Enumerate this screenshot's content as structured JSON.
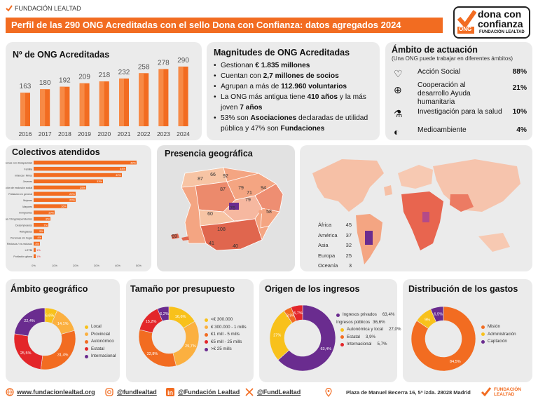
{
  "header": {
    "org_logo_text": "FUNDACIÓN LEALTAD",
    "banner_title": "Perfil de las 290 ONG Acreditadas con el sello Dona con Confianza: datos agregados 2024",
    "seal": {
      "line1": "dona con",
      "line2": "confianza",
      "badge": "ONG",
      "org": "FUNDACIÓN LEALTAD"
    }
  },
  "colors": {
    "orange": "#f26c21",
    "dark_orange": "#c94a0c",
    "purple": "#6a2c8f",
    "yellow": "#f8c11b",
    "red": "#e3262a",
    "card_bg": "#ebebeb"
  },
  "ong_count": {
    "title": "Nº de ONG Acreditadas"
  },
  "magnitudes": {
    "title": "Magnitudes de ONG Acreditadas",
    "items": [
      {
        "pre": "Gestionan ",
        "bold": "€ 1.835 millones",
        "post": ""
      },
      {
        "pre": "Cuentan con ",
        "bold": "2,7 millones de socios",
        "post": ""
      },
      {
        "pre": "Agrupan a más de ",
        "bold": "112.960 voluntarios",
        "post": ""
      },
      {
        "pre": "La ONG más antigua tiene ",
        "bold": "410 años",
        "post": " y la más joven ",
        "bold2": "7 años"
      },
      {
        "pre": "53% son ",
        "bold": "Asociaciones",
        "post": " declaradas de utilidad pública y 47% son ",
        "bold2": "Fundaciones"
      }
    ]
  },
  "ambito_actuacion": {
    "title": "Ámbito de actuación",
    "subtitle": "(Una ONG puede trabajar en diferentes ámbitos)",
    "rows": [
      {
        "icon": "hands-heart-icon",
        "label": "Acción Social",
        "pct": "88%"
      },
      {
        "icon": "globe-parachute-icon",
        "label": "Cooperación al desarrollo Ayuda humanitaria",
        "pct": "21%"
      },
      {
        "icon": "microscope-icon",
        "label": "Investigación para la salud",
        "pct": "10%"
      },
      {
        "icon": "earth-icon",
        "label": "Medioambiente",
        "pct": "4%"
      }
    ]
  },
  "colectivos": {
    "title": "Colectivos atendidos"
  },
  "presencia": {
    "title": "Presencia geográfica"
  },
  "ambito_geo": {
    "title": "Ámbito geográfico"
  },
  "tamano": {
    "title": "Tamaño por presupuesto"
  },
  "origen": {
    "title": "Origen de los ingresos"
  },
  "gastos": {
    "title": "Distribución de los gastos"
  },
  "footer": {
    "web": "www.fundacionlealtad.org",
    "instagram": "@fundlealtad",
    "linkedin": "@Fundación Lealtad",
    "x": "@FundLealtad",
    "address": "Plaza de Manuel Becerra 16, 5ª izda. 28028 Madrid",
    "logo": "FUNDACIÓN LEALTAD"
  },
  "chart_data": [
    {
      "type": "bar",
      "title": "Nº de ONG Acreditadas",
      "categories": [
        "2016",
        "2017",
        "2018",
        "2019",
        "2020",
        "2021",
        "2022",
        "2023",
        "2024"
      ],
      "values": [
        163,
        180,
        192,
        209,
        218,
        232,
        258,
        278,
        290
      ]
    },
    {
      "type": "bar",
      "title": "Colectivos atendidos",
      "orientation": "horizontal",
      "categories": [
        "Personas con discapacidad",
        "Familia",
        "Infancia / Niños",
        "Jóvenes",
        "Personas en situación de exclusión social",
        "Población en general",
        "Mujeres",
        "Mayores",
        "Inmigrantes",
        "Personas enfermas / Drogodependientes",
        "Desempleados",
        "Refugiados",
        "Personas sin hogar",
        "Reclusos / ex-reclusos",
        "LGTBI",
        "Población gitana"
      ],
      "values": [
        49,
        44,
        42,
        33,
        25,
        20,
        20,
        16,
        10,
        8,
        7,
        5,
        4,
        3,
        1,
        1
      ],
      "value_labels": [
        "49%",
        "44%",
        "42%",
        "33%",
        "25%",
        "20%",
        "20%",
        "16%",
        "10%",
        "8%",
        "7%",
        "5%",
        "4%",
        "3%",
        "1%",
        "1%"
      ],
      "x_ticks": [
        "0%",
        "10%",
        "20%",
        "30%",
        "40%",
        "50%"
      ],
      "xlim": [
        0,
        50
      ]
    },
    {
      "type": "table",
      "title": "Presencia geográfica",
      "spain_region_values": [
        "87",
        "66",
        "92",
        "87",
        "79",
        "94",
        "71",
        "79",
        "76",
        "58",
        "60",
        "108",
        "69",
        "41",
        "40"
      ],
      "continents": [
        {
          "name": "África",
          "value": 45
        },
        {
          "name": "América",
          "value": 37
        },
        {
          "name": "Asia",
          "value": 32
        },
        {
          "name": "Europa",
          "value": 25
        },
        {
          "name": "Oceanía",
          "value": 3
        }
      ]
    },
    {
      "type": "pie",
      "title": "Ámbito geográfico",
      "series": [
        {
          "name": "Local",
          "value": 6.6,
          "label": "6,6%",
          "color": "#f8c11b"
        },
        {
          "name": "Provincial",
          "value": 14.1,
          "label": "14,1%",
          "color": "#fbb040"
        },
        {
          "name": "Autonómico",
          "value": 31.4,
          "label": "31,4%",
          "color": "#f26c21"
        },
        {
          "name": "Estatal",
          "value": 25.5,
          "label": "25,5%",
          "color": "#e3262a"
        },
        {
          "name": "Internacional",
          "value": 22.4,
          "label": "22,4%",
          "color": "#6a2c8f"
        }
      ]
    },
    {
      "type": "pie",
      "title": "Tamaño por presupuesto",
      "series": [
        {
          "name": "<€ 300.000",
          "value": 16.6,
          "label": "16,6%",
          "color": "#f8c11b"
        },
        {
          "name": "€ 300.000 - 1 mills",
          "value": 29.7,
          "label": "29,7%",
          "color": "#fbb040"
        },
        {
          "name": "€1 mill - 5 mills",
          "value": 32.8,
          "label": "32,8%",
          "color": "#f26c21"
        },
        {
          "name": "€5 mill - 25 mills",
          "value": 15.2,
          "label": "15,2%",
          "color": "#e3262a"
        },
        {
          "name": ">€ 25 mills",
          "value": 6.2,
          "label": "6,2%",
          "color": "#6a2c8f"
        }
      ]
    },
    {
      "type": "pie",
      "title": "Origen de los ingresos",
      "series": [
        {
          "name": "Ingresos privados",
          "value": 63.4,
          "label": "63,4%",
          "legend_value": "63,4%",
          "color": "#6a2c8f"
        },
        {
          "name": "Autonómica y local",
          "value": 27,
          "label": "27%",
          "legend_value": "27,0%",
          "color": "#f8c11b"
        },
        {
          "name": "Estatal",
          "value": 3.9,
          "label": "3,9%",
          "legend_value": "3,9%",
          "color": "#f26c21"
        },
        {
          "name": "Internacional",
          "value": 5.7,
          "label": "5,7%",
          "legend_value": "5,7%",
          "color": "#e3262a"
        }
      ],
      "group_label": "Ingresos públicos",
      "group_value": "36,6%"
    },
    {
      "type": "pie",
      "title": "Distribución de los gastos",
      "series": [
        {
          "name": "Misión",
          "value": 84.5,
          "label": "84,5%",
          "color": "#f26c21"
        },
        {
          "name": "Administración",
          "value": 9,
          "label": "9%",
          "color": "#f8c11b"
        },
        {
          "name": "Captación",
          "value": 6.5,
          "label": "6,5%",
          "color": "#6a2c8f"
        }
      ]
    }
  ]
}
